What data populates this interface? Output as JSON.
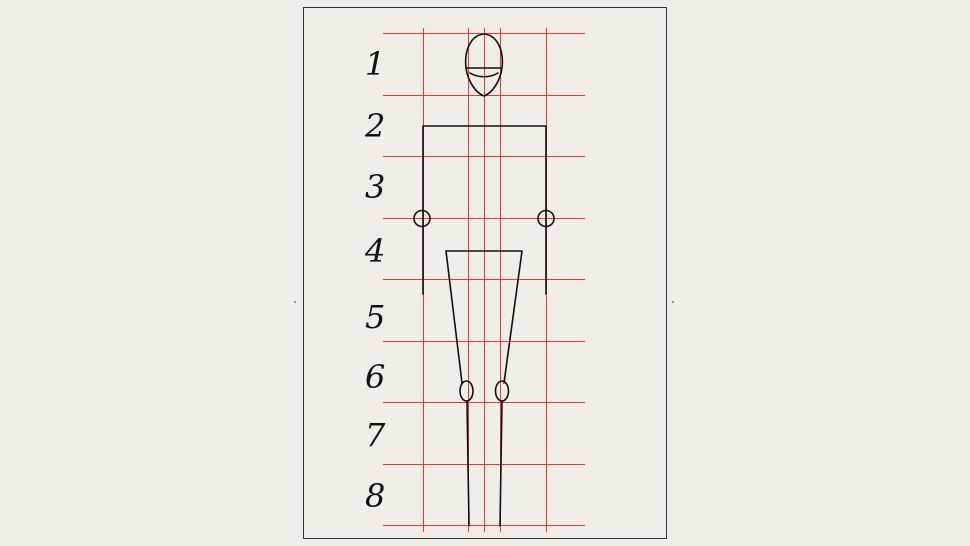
{
  "diagram": {
    "row_labels": [
      "1",
      "2",
      "3",
      "4",
      "5",
      "6",
      "7",
      "8"
    ],
    "colors": {
      "background": "#f2ede6",
      "paper": "#f2ede6",
      "frame": "#333333",
      "guide_lines": "#e23a3a",
      "figure": "#111111"
    }
  }
}
